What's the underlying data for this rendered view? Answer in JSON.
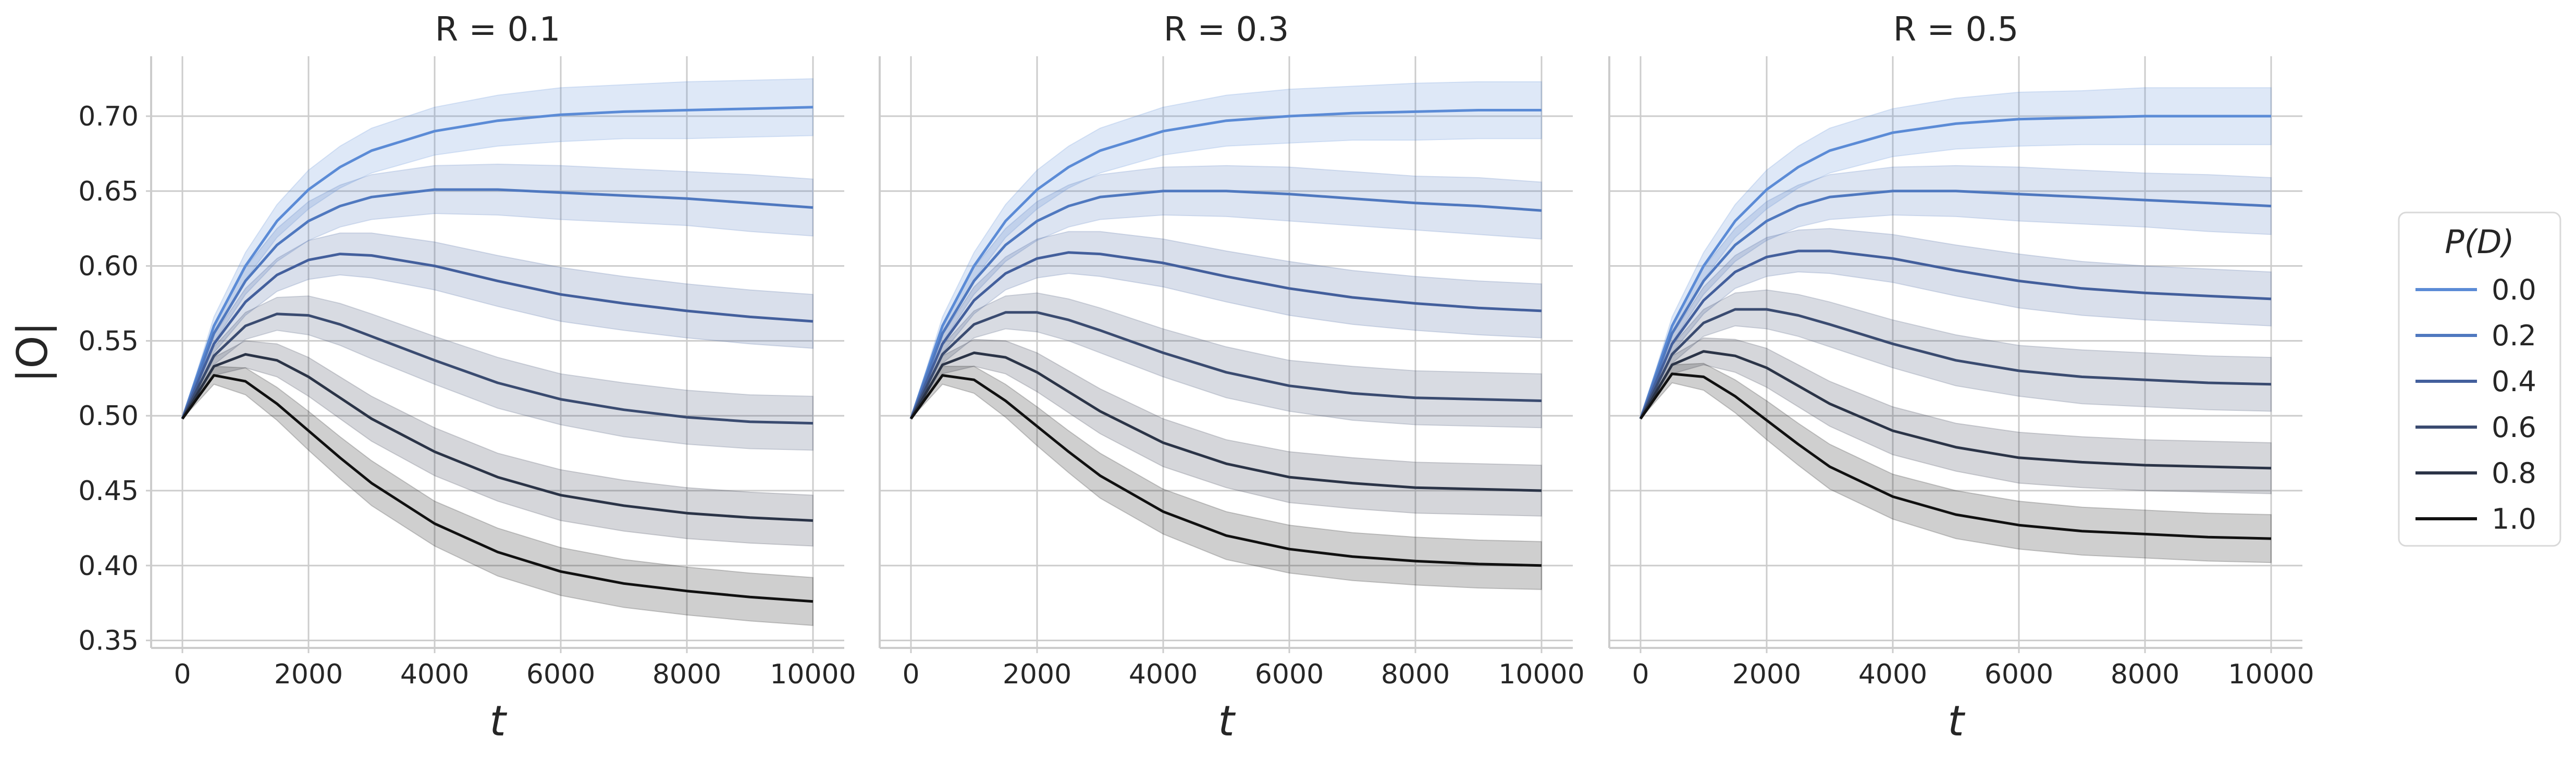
{
  "chart_data": {
    "type": "line",
    "layout": "3 panels in one row, shared y axis",
    "grid": true,
    "legend": {
      "title": "P(D)",
      "placement": "right",
      "entries": [
        "0.0",
        "0.2",
        "0.4",
        "0.6",
        "0.8",
        "1.0"
      ]
    },
    "colors": [
      "#5b8bd6",
      "#4f78bf",
      "#435f9c",
      "#3a4b70",
      "#2b3447",
      "#111111"
    ],
    "x_axis": {
      "label": "t",
      "range": [
        0,
        10000
      ],
      "ticks": [
        0,
        2000,
        4000,
        6000,
        8000,
        10000
      ],
      "tick_labels": [
        "0",
        "2000",
        "4000",
        "6000",
        "8000",
        "10000"
      ]
    },
    "y_axis": {
      "label": "|O|",
      "range": [
        0.345,
        0.74
      ],
      "ticks": [
        0.35,
        0.4,
        0.45,
        0.5,
        0.55,
        0.6,
        0.65,
        0.7
      ],
      "tick_labels": [
        "0.35",
        "0.40",
        "0.45",
        "0.50",
        "0.55",
        "0.60",
        "0.65",
        "0.70"
      ]
    },
    "x": [
      0,
      500,
      1000,
      1500,
      2000,
      2500,
      3000,
      4000,
      5000,
      6000,
      7000,
      8000,
      9000,
      10000
    ],
    "panels": [
      {
        "title": "R = 0.1",
        "title_var": "R",
        "title_value": "0.1",
        "series": [
          {
            "name": "0.0",
            "y": [
              0.498,
              0.56,
              0.6,
              0.63,
              0.651,
              0.666,
              0.677,
              0.69,
              0.697,
              0.701,
              0.703,
              0.704,
              0.705,
              0.706
            ],
            "spread": [
              0,
              0.006,
              0.009,
              0.011,
              0.013,
              0.014,
              0.015,
              0.016,
              0.017,
              0.018,
              0.018,
              0.019,
              0.019,
              0.019
            ]
          },
          {
            "name": "0.2",
            "y": [
              0.498,
              0.555,
              0.59,
              0.614,
              0.63,
              0.64,
              0.646,
              0.651,
              0.651,
              0.649,
              0.647,
              0.645,
              0.642,
              0.639
            ],
            "spread": [
              0,
              0.006,
              0.009,
              0.011,
              0.013,
              0.014,
              0.015,
              0.016,
              0.017,
              0.018,
              0.018,
              0.018,
              0.019,
              0.019
            ]
          },
          {
            "name": "0.4",
            "y": [
              0.498,
              0.548,
              0.576,
              0.594,
              0.604,
              0.608,
              0.607,
              0.6,
              0.59,
              0.581,
              0.575,
              0.57,
              0.566,
              0.563
            ],
            "spread": [
              0,
              0.006,
              0.009,
              0.011,
              0.013,
              0.014,
              0.015,
              0.016,
              0.017,
              0.018,
              0.018,
              0.018,
              0.018,
              0.018
            ]
          },
          {
            "name": "0.6",
            "y": [
              0.498,
              0.54,
              0.56,
              0.568,
              0.567,
              0.561,
              0.553,
              0.537,
              0.522,
              0.511,
              0.504,
              0.499,
              0.496,
              0.495
            ],
            "spread": [
              0,
              0.006,
              0.009,
              0.011,
              0.013,
              0.014,
              0.015,
              0.016,
              0.017,
              0.017,
              0.018,
              0.018,
              0.018,
              0.018
            ]
          },
          {
            "name": "0.8",
            "y": [
              0.498,
              0.533,
              0.541,
              0.537,
              0.526,
              0.512,
              0.498,
              0.476,
              0.459,
              0.447,
              0.44,
              0.435,
              0.432,
              0.43
            ],
            "spread": [
              0,
              0.006,
              0.009,
              0.011,
              0.013,
              0.014,
              0.015,
              0.016,
              0.016,
              0.017,
              0.017,
              0.017,
              0.017,
              0.017
            ]
          },
          {
            "name": "1.0",
            "y": [
              0.498,
              0.527,
              0.523,
              0.508,
              0.49,
              0.472,
              0.455,
              0.428,
              0.409,
              0.396,
              0.388,
              0.383,
              0.379,
              0.376
            ],
            "spread": [
              0,
              0.006,
              0.009,
              0.011,
              0.013,
              0.014,
              0.015,
              0.015,
              0.016,
              0.016,
              0.016,
              0.016,
              0.016,
              0.016
            ]
          }
        ]
      },
      {
        "title": "R = 0.3",
        "title_var": "R",
        "title_value": "0.3",
        "series": [
          {
            "name": "0.0",
            "y": [
              0.498,
              0.56,
              0.6,
              0.63,
              0.651,
              0.666,
              0.677,
              0.69,
              0.697,
              0.7,
              0.702,
              0.703,
              0.704,
              0.704
            ],
            "spread": [
              0,
              0.006,
              0.009,
              0.011,
              0.013,
              0.014,
              0.015,
              0.016,
              0.017,
              0.018,
              0.018,
              0.019,
              0.019,
              0.019
            ]
          },
          {
            "name": "0.2",
            "y": [
              0.498,
              0.555,
              0.59,
              0.614,
              0.63,
              0.64,
              0.646,
              0.65,
              0.65,
              0.648,
              0.645,
              0.642,
              0.64,
              0.637
            ],
            "spread": [
              0,
              0.006,
              0.009,
              0.011,
              0.013,
              0.014,
              0.015,
              0.016,
              0.017,
              0.018,
              0.018,
              0.018,
              0.019,
              0.019
            ]
          },
          {
            "name": "0.4",
            "y": [
              0.498,
              0.548,
              0.577,
              0.595,
              0.605,
              0.609,
              0.608,
              0.602,
              0.593,
              0.585,
              0.579,
              0.575,
              0.572,
              0.57
            ],
            "spread": [
              0,
              0.006,
              0.009,
              0.011,
              0.013,
              0.014,
              0.015,
              0.016,
              0.017,
              0.018,
              0.018,
              0.018,
              0.018,
              0.018
            ]
          },
          {
            "name": "0.6",
            "y": [
              0.498,
              0.541,
              0.561,
              0.569,
              0.569,
              0.564,
              0.557,
              0.542,
              0.529,
              0.52,
              0.515,
              0.512,
              0.511,
              0.51
            ],
            "spread": [
              0,
              0.006,
              0.009,
              0.011,
              0.013,
              0.014,
              0.015,
              0.016,
              0.017,
              0.017,
              0.018,
              0.018,
              0.018,
              0.018
            ]
          },
          {
            "name": "0.8",
            "y": [
              0.498,
              0.534,
              0.542,
              0.539,
              0.529,
              0.516,
              0.503,
              0.482,
              0.468,
              0.459,
              0.455,
              0.452,
              0.451,
              0.45
            ],
            "spread": [
              0,
              0.006,
              0.009,
              0.011,
              0.013,
              0.014,
              0.015,
              0.016,
              0.016,
              0.017,
              0.017,
              0.017,
              0.017,
              0.017
            ]
          },
          {
            "name": "1.0",
            "y": [
              0.498,
              0.527,
              0.524,
              0.51,
              0.493,
              0.476,
              0.46,
              0.436,
              0.42,
              0.411,
              0.406,
              0.403,
              0.401,
              0.4
            ],
            "spread": [
              0,
              0.006,
              0.009,
              0.011,
              0.013,
              0.014,
              0.015,
              0.015,
              0.016,
              0.016,
              0.016,
              0.016,
              0.016,
              0.016
            ]
          }
        ]
      },
      {
        "title": "R = 0.5",
        "title_var": "R",
        "title_value": "0.5",
        "series": [
          {
            "name": "0.0",
            "y": [
              0.498,
              0.56,
              0.6,
              0.63,
              0.651,
              0.666,
              0.677,
              0.689,
              0.695,
              0.698,
              0.699,
              0.7,
              0.7,
              0.7
            ],
            "spread": [
              0,
              0.006,
              0.009,
              0.011,
              0.013,
              0.014,
              0.015,
              0.016,
              0.017,
              0.018,
              0.018,
              0.019,
              0.019,
              0.019
            ]
          },
          {
            "name": "0.2",
            "y": [
              0.498,
              0.555,
              0.59,
              0.614,
              0.63,
              0.64,
              0.646,
              0.65,
              0.65,
              0.648,
              0.646,
              0.644,
              0.642,
              0.64
            ],
            "spread": [
              0,
              0.006,
              0.009,
              0.011,
              0.013,
              0.014,
              0.015,
              0.016,
              0.017,
              0.018,
              0.018,
              0.018,
              0.019,
              0.019
            ]
          },
          {
            "name": "0.4",
            "y": [
              0.498,
              0.548,
              0.577,
              0.596,
              0.606,
              0.61,
              0.61,
              0.605,
              0.597,
              0.59,
              0.585,
              0.582,
              0.58,
              0.578
            ],
            "spread": [
              0,
              0.006,
              0.009,
              0.011,
              0.013,
              0.014,
              0.015,
              0.016,
              0.017,
              0.018,
              0.018,
              0.018,
              0.018,
              0.018
            ]
          },
          {
            "name": "0.6",
            "y": [
              0.498,
              0.541,
              0.562,
              0.571,
              0.571,
              0.567,
              0.561,
              0.548,
              0.537,
              0.53,
              0.526,
              0.524,
              0.522,
              0.521
            ],
            "spread": [
              0,
              0.006,
              0.009,
              0.011,
              0.013,
              0.014,
              0.015,
              0.016,
              0.017,
              0.017,
              0.018,
              0.018,
              0.018,
              0.018
            ]
          },
          {
            "name": "0.8",
            "y": [
              0.498,
              0.534,
              0.543,
              0.54,
              0.532,
              0.52,
              0.508,
              0.49,
              0.479,
              0.472,
              0.469,
              0.467,
              0.466,
              0.465
            ],
            "spread": [
              0,
              0.006,
              0.009,
              0.011,
              0.013,
              0.014,
              0.015,
              0.016,
              0.016,
              0.017,
              0.017,
              0.017,
              0.017,
              0.017
            ]
          },
          {
            "name": "1.0",
            "y": [
              0.498,
              0.528,
              0.526,
              0.513,
              0.497,
              0.481,
              0.466,
              0.446,
              0.434,
              0.427,
              0.423,
              0.421,
              0.419,
              0.418
            ],
            "spread": [
              0,
              0.006,
              0.009,
              0.011,
              0.013,
              0.014,
              0.015,
              0.015,
              0.016,
              0.016,
              0.016,
              0.016,
              0.016,
              0.016
            ]
          }
        ]
      }
    ]
  }
}
